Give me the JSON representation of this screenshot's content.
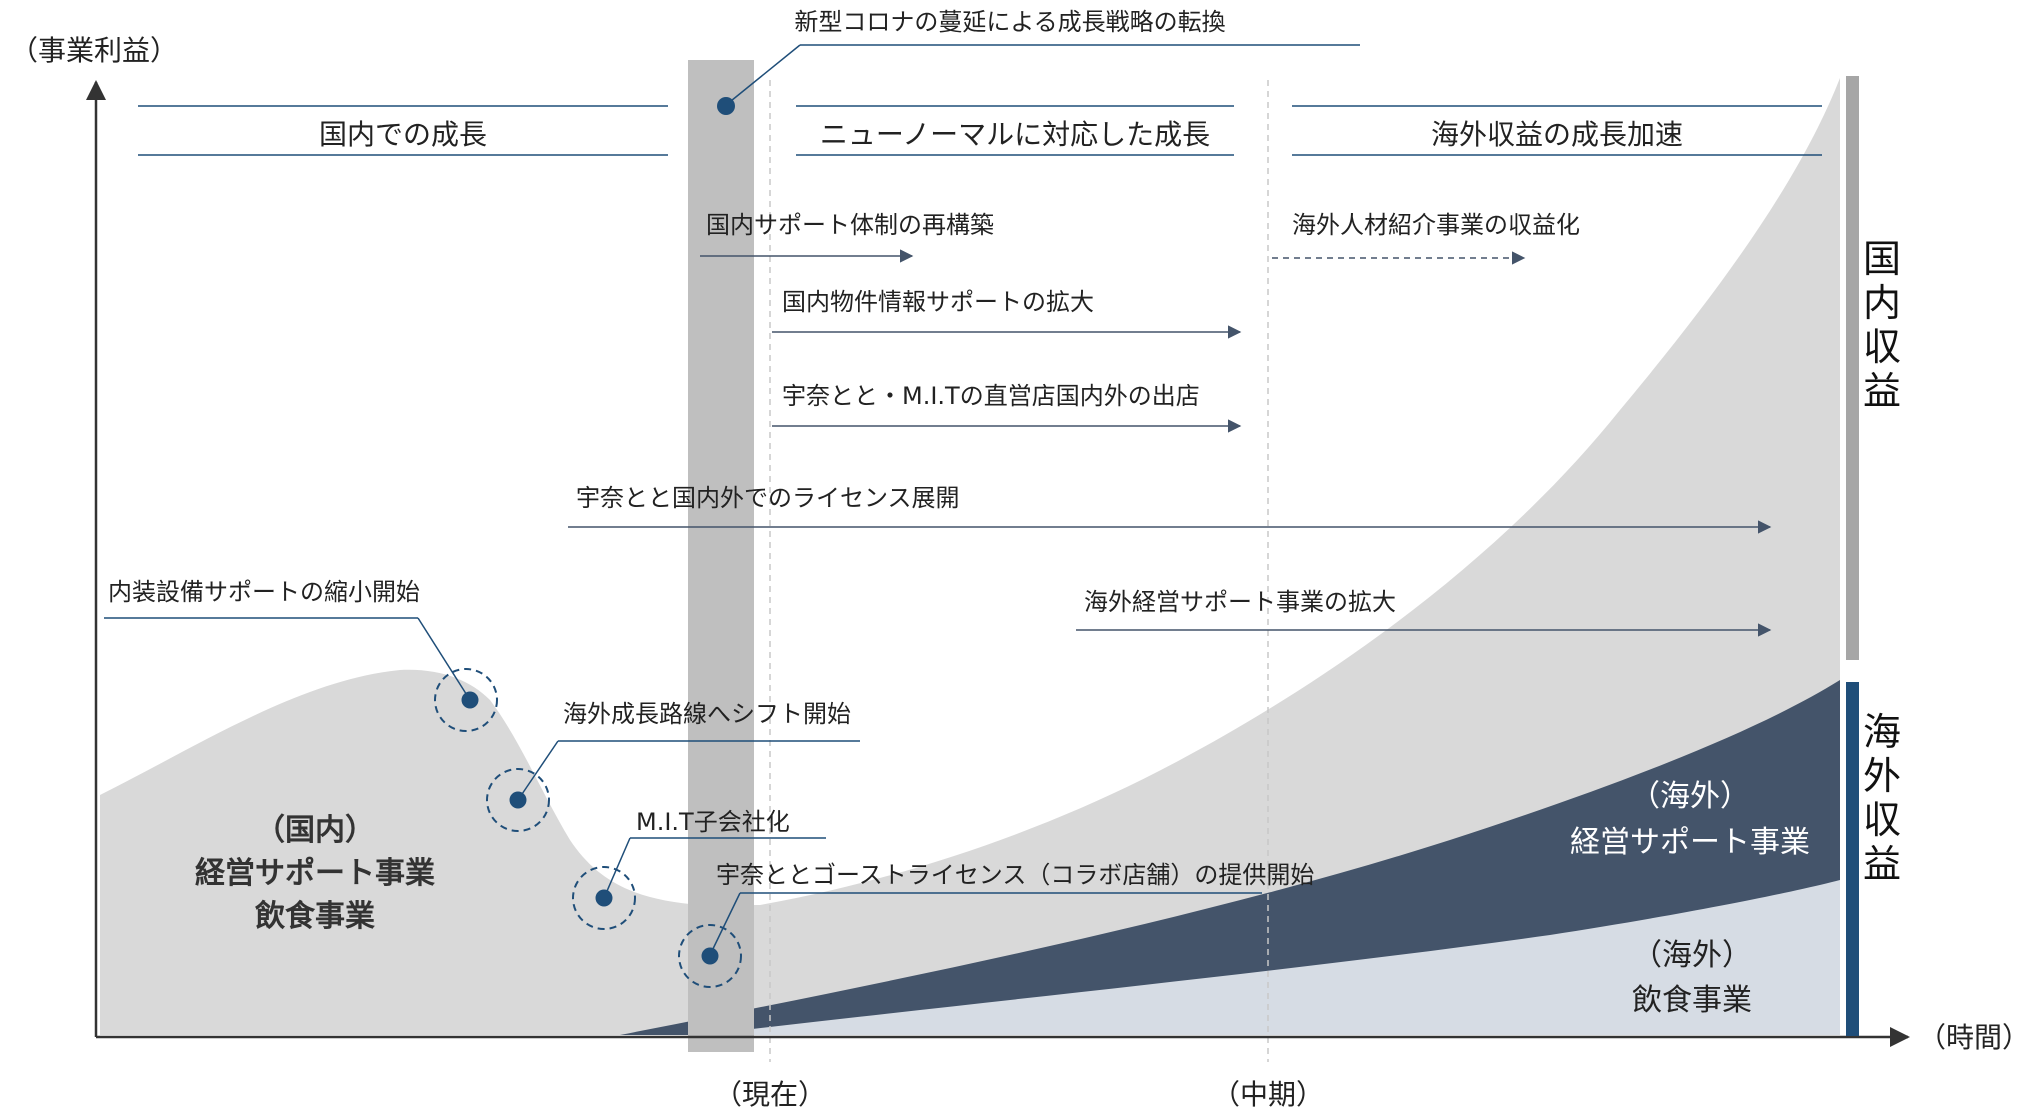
{
  "axis": {
    "y_label": "（事業利益）",
    "x_label": "（時間）",
    "tick_now": "（現在）",
    "tick_mid": "（中期）"
  },
  "header": {
    "pivot_label": "新型コロナの蔓延による成長戦略の転換"
  },
  "phases": [
    "国内での成長",
    "ニューノーマルに対応した成長",
    "海外収益の成長加速"
  ],
  "initiatives": [
    "国内サポート体制の再構築",
    "海外人材紹介事業の収益化",
    "国内物件情報サポートの拡大",
    "宇奈とと・M.I.Tの直営店国内外の出店",
    "宇奈とと国内外でのライセンス展開",
    "海外経営サポート事業の拡大"
  ],
  "milestones": [
    "内装設備サポートの縮小開始",
    "海外成長路線へシフト開始",
    "M.I.T子会社化",
    "宇奈ととゴーストライセンス（コラボ店舗）の提供開始"
  ],
  "areas": {
    "domestic_line1": "（国内）",
    "domestic_line2": "経営サポート事業",
    "domestic_line3": "飲食事業",
    "overseas_support_line1": "（海外）",
    "overseas_support_line2": "経営サポート事業",
    "overseas_food_line1": "（海外）",
    "overseas_food_line2": "飲食事業"
  },
  "side_labels": {
    "domestic": [
      "国",
      "内",
      "収",
      "益"
    ],
    "overseas": [
      "海",
      "外",
      "収",
      "益"
    ]
  },
  "colors": {
    "domestic_area": "#d9d9d9",
    "overseas_support": "#44546a",
    "overseas_food": "#d6dce4",
    "accent_blue": "#1f4e79",
    "bracket_gray": "#a6a6a6",
    "bracket_blue": "#1f4e79",
    "pivot_band": "#bfbfbf"
  }
}
